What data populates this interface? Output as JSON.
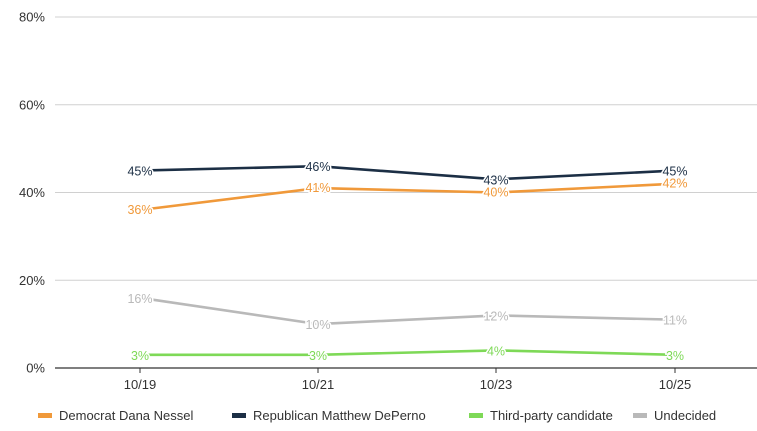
{
  "chart_data": {
    "type": "line",
    "categories": [
      "10/19",
      "10/21",
      "10/23",
      "10/25"
    ],
    "ylim": [
      0,
      80
    ],
    "yticks": [
      0,
      20,
      40,
      60,
      80
    ],
    "ytick_labels": [
      "0%",
      "20%",
      "40%",
      "60%",
      "80%"
    ],
    "grid": true,
    "legend_position": "bottom",
    "series": [
      {
        "name": "Democrat Dana Nessel",
        "color": "#f0993a",
        "values": [
          36,
          41,
          40,
          42
        ],
        "labels": [
          "36%",
          "41%",
          "40%",
          "42%"
        ]
      },
      {
        "name": "Republican Matthew DePerno",
        "color": "#1c2f45",
        "values": [
          45,
          46,
          43,
          45
        ],
        "labels": [
          "45%",
          "46%",
          "43%",
          "45%"
        ]
      },
      {
        "name": "Third-party candidate",
        "color": "#7ed957",
        "values": [
          3,
          3,
          4,
          3
        ],
        "labels": [
          "3%",
          "3%",
          "4%",
          "3%"
        ]
      },
      {
        "name": "Undecided",
        "color": "#b9b9b9",
        "values": [
          16,
          10,
          12,
          11
        ],
        "labels": [
          "16%",
          "10%",
          "12%",
          "11%"
        ]
      }
    ]
  }
}
